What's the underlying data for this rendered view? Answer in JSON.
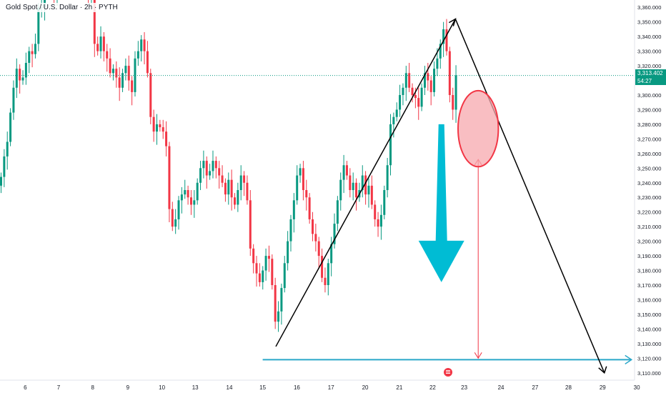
{
  "header": {
    "symbol_title": "Gold Spot / U.S. Dollar · 2h · PYTH"
  },
  "current_price": {
    "value": "3,313.402",
    "countdown": "54:27"
  },
  "colors": {
    "up": "#089981",
    "down": "#f23645",
    "trend_line": "#000000",
    "arrow": "#00bcd4",
    "target_line": "#2aa7c9",
    "circle_fill": "#f7a8ae",
    "circle_stroke": "#f23645",
    "axis_text": "#131722",
    "price_tag": "#089981"
  },
  "chart_data": {
    "type": "candlestick",
    "title": "Gold Spot / U.S. Dollar · 2h · PYTH",
    "ylim": [
      3105,
      3365
    ],
    "y_ticks": [
      3110,
      3120,
      3130,
      3140,
      3150,
      3160,
      3170,
      3180,
      3190,
      3200,
      3210,
      3220,
      3230,
      3240,
      3250,
      3260,
      3270,
      3280,
      3290,
      3300,
      3310,
      3320,
      3330,
      3340,
      3350,
      3360
    ],
    "x_ticks": [
      {
        "label": "6",
        "x": 0.6
      },
      {
        "label": "7",
        "x": 4.4
      },
      {
        "label": "8",
        "x": 8.3
      },
      {
        "label": "9",
        "x": 12.3
      },
      {
        "label": "10",
        "x": 16.2
      },
      {
        "label": "13",
        "x": 20.0
      },
      {
        "label": "14",
        "x": 23.9
      },
      {
        "label": "15",
        "x": 27.7
      },
      {
        "label": "16",
        "x": 31.6
      },
      {
        "label": "17",
        "x": 35.5
      },
      {
        "label": "20",
        "x": 39.4
      },
      {
        "label": "21",
        "x": 43.3
      },
      {
        "label": "22",
        "x": 47.1
      },
      {
        "label": "23",
        "x": 50.7
      },
      {
        "label": "24",
        "x": 54.9
      },
      {
        "label": "27",
        "x": 58.8
      },
      {
        "label": "28",
        "x": 62.6
      },
      {
        "label": "29",
        "x": 66.5
      },
      {
        "label": "30",
        "x": 70.4
      }
    ],
    "candles_close": [
      3244,
      3258,
      3268,
      3288,
      3305,
      3318,
      3310,
      3312,
      3322,
      3330,
      3328,
      3335,
      3360,
      3360,
      3375,
      3380,
      3378,
      3370,
      3380,
      3385,
      3390,
      3392,
      3395,
      3390,
      3385,
      3380,
      3375,
      3372,
      3368,
      3368,
      3335,
      3330,
      3340,
      3330,
      3325,
      3315,
      3318,
      3312,
      3305,
      3315,
      3320,
      3310,
      3302,
      3325,
      3330,
      3338,
      3330,
      3315,
      3285,
      3275,
      3280,
      3278,
      3275,
      3265,
      3222,
      3210,
      3215,
      3228,
      3232,
      3235,
      3230,
      3225,
      3228,
      3240,
      3250,
      3255,
      3245,
      3248,
      3255,
      3250,
      3245,
      3240,
      3232,
      3242,
      3230,
      3225,
      3235,
      3245,
      3240,
      3228,
      3195,
      3185,
      3178,
      3172,
      3180,
      3190,
      3188,
      3170,
      3145,
      3152,
      3168,
      3185,
      3200,
      3215,
      3228,
      3245,
      3250,
      3235,
      3230,
      3215,
      3205,
      3200,
      3190,
      3175,
      3170,
      3185,
      3198,
      3212,
      3228,
      3242,
      3252,
      3245,
      3235,
      3240,
      3230,
      3235,
      3245,
      3232,
      3238,
      3225,
      3215,
      3210,
      3218,
      3235,
      3252,
      3280,
      3285,
      3290,
      3300,
      3305,
      3315,
      3305,
      3300,
      3298,
      3292,
      3305,
      3315,
      3310,
      3302,
      3318,
      3325,
      3335,
      3345,
      3330,
      3300,
      3290,
      3313.402
    ],
    "trend_lines": [
      {
        "from": [
          29.2,
          3128
        ],
        "to": [
          49.7,
          3352
        ]
      },
      {
        "from": [
          49.7,
          3352
        ],
        "to": [
          66.7,
          3110
        ]
      }
    ],
    "target_line": {
      "from": [
        27.7,
        3119
      ],
      "to": [
        69.8,
        3119
      ]
    },
    "projection_arrow": {
      "x": 52.3,
      "from": 3256,
      "to": 3120
    },
    "down_arrow": {
      "x": 48.1,
      "from": 3280,
      "to": 3172
    },
    "circle": {
      "cx": 52.3,
      "cy": 3277,
      "rx": 2.3,
      "ry": 20
    },
    "current_price_line": 3313.402
  }
}
